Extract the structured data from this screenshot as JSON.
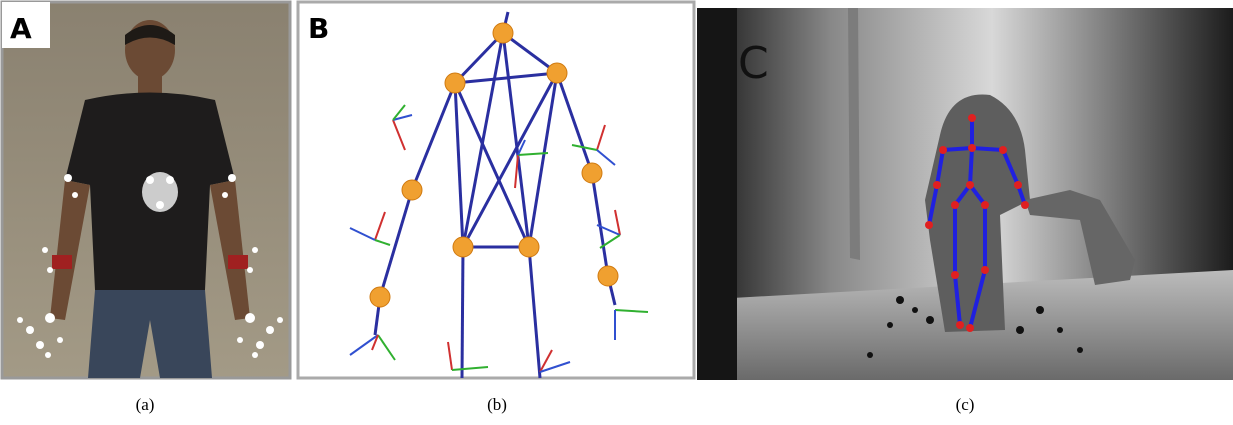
{
  "panels": [
    {
      "label": "A",
      "caption": "(a)"
    },
    {
      "label": "B",
      "caption": "(b)"
    },
    {
      "label": "C",
      "caption": "(c)"
    }
  ]
}
